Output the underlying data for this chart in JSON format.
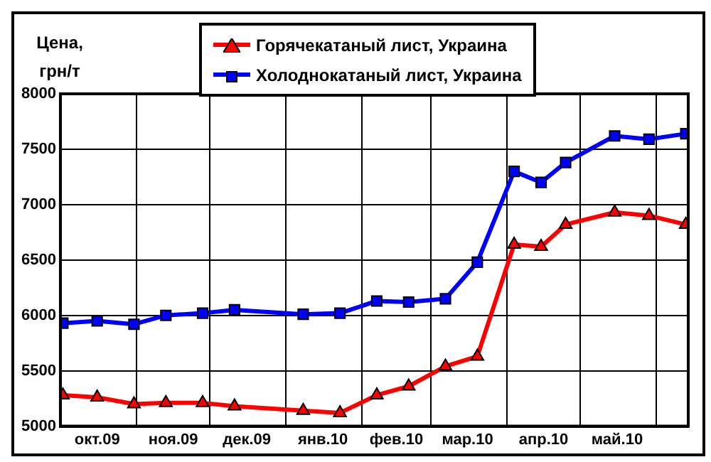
{
  "chart_data": {
    "type": "line",
    "ylabel": "Цена, грн/т",
    "legend": "top",
    "grid": true,
    "line_style": "solid",
    "ylim": [
      5000,
      8000
    ],
    "yticks": [
      5000,
      5500,
      6000,
      6500,
      7000,
      7500,
      8000
    ],
    "xlim": [
      "2009-10-01",
      "2010-06-14"
    ],
    "xticks": [
      {
        "value": "2009-10-01",
        "label": null
      },
      {
        "value": "2009-10-16",
        "label": "окт.09"
      },
      {
        "value": "2009-11-01",
        "label": null
      },
      {
        "value": "2009-11-16",
        "label": "ноя.09"
      },
      {
        "value": "2009-12-01",
        "label": null
      },
      {
        "value": "2009-12-16",
        "label": "дек.09"
      },
      {
        "value": "2010-01-01",
        "label": null
      },
      {
        "value": "2010-01-16",
        "label": "янв.10"
      },
      {
        "value": "2010-02-01",
        "label": null
      },
      {
        "value": "2010-02-15",
        "label": "фев.10"
      },
      {
        "value": "2010-03-01",
        "label": null
      },
      {
        "value": "2010-03-16",
        "label": "мар.10"
      },
      {
        "value": "2010-04-01",
        "label": null
      },
      {
        "value": "2010-04-16",
        "label": "апр.10"
      },
      {
        "value": "2010-05-01",
        "label": null
      },
      {
        "value": "2010-05-16",
        "label": "май.10"
      },
      {
        "value": "2010-06-01",
        "label": null
      }
    ],
    "x": [
      "2009-10-02",
      "2009-10-16",
      "2009-10-31",
      "2009-11-13",
      "2009-11-28",
      "2009-12-11",
      "2010-01-08",
      "2010-01-23",
      "2010-02-07",
      "2010-02-20",
      "2010-03-07",
      "2010-03-20",
      "2010-04-04",
      "2010-04-15",
      "2010-04-25",
      "2010-05-15",
      "2010-05-29",
      "2010-06-13"
    ],
    "series": [
      {
        "name": "Горячекатаный лист, Украина",
        "color": "#ff0000",
        "marker": "triangle",
        "values": [
          5280,
          5260,
          5200,
          5210,
          5210,
          5180,
          5140,
          5120,
          5280,
          5360,
          5540,
          5630,
          6640,
          6620,
          6820,
          6930,
          6900,
          6820
        ]
      },
      {
        "name": "Холоднокатаный лист, Украина",
        "color": "#0000ff",
        "marker": "square",
        "values": [
          5930,
          5950,
          5920,
          6000,
          6020,
          6050,
          6010,
          6020,
          6130,
          6120,
          6150,
          6480,
          7300,
          7200,
          7380,
          7620,
          7590,
          7640
        ]
      }
    ]
  }
}
